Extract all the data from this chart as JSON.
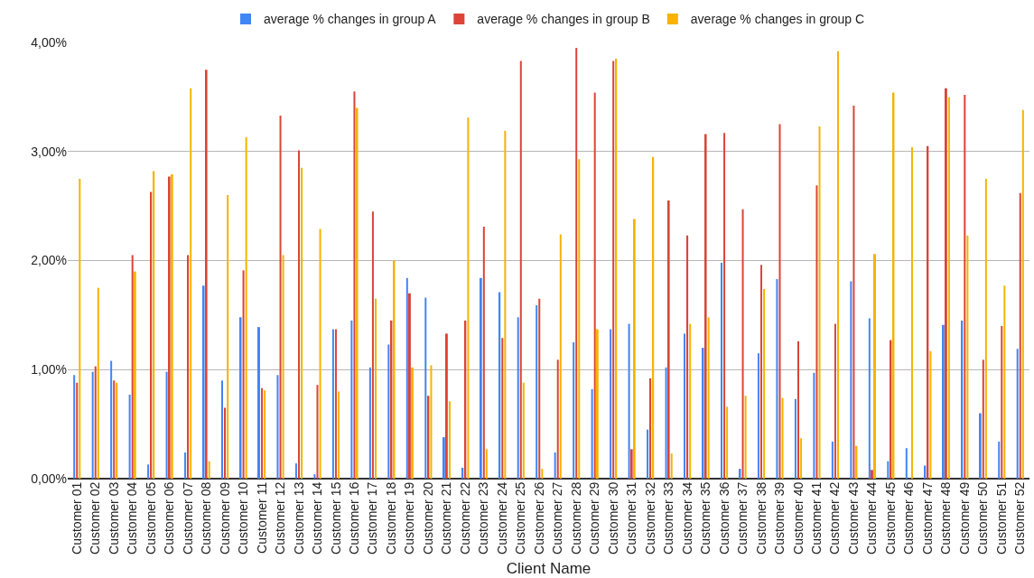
{
  "chart_data": {
    "type": "bar",
    "xlabel": "Client Name",
    "categories": [
      "Customer 01",
      "Customer 02",
      "Customer 03",
      "Customer 04",
      "Customer 05",
      "Customer 06",
      "Customer 07",
      "Customer 08",
      "Customer 09",
      "Customer 10",
      "Customer 11",
      "Customer 12",
      "Customer 13",
      "Customer 14",
      "Customer 15",
      "Customer 16",
      "Customer 17",
      "Customer 18",
      "Customer 19",
      "Customer 20",
      "Customer 21",
      "Customer 22",
      "Customer 23",
      "Customer 24",
      "Customer 25",
      "Customer 26",
      "Customer 27",
      "Customer 28",
      "Customer 29",
      "Customer 30",
      "Customer 31",
      "Customer 32",
      "Customer 33",
      "Customer 34",
      "Customer 35",
      "Customer 36",
      "Customer 37",
      "Customer 38",
      "Customer 39",
      "Customer 40",
      "Customer 41",
      "Customer 42",
      "Customer 43",
      "Customer 44",
      "Customer 45",
      "Customer 46",
      "Customer 47",
      "Customer 48",
      "Customer 49",
      "Customer 50",
      "Customer 51",
      "Customer 52"
    ],
    "series": [
      {
        "name": "average % changes in group A",
        "color": "#4285f4",
        "values": [
          0.95,
          0.98,
          1.08,
          0.77,
          0.13,
          0.98,
          0.24,
          1.77,
          0.9,
          1.48,
          1.39,
          0.95,
          0.14,
          0.04,
          1.37,
          1.45,
          1.02,
          1.23,
          1.84,
          1.66,
          0.38,
          0.1,
          1.84,
          1.71,
          1.48,
          1.59,
          0.24,
          1.25,
          0.82,
          1.37,
          1.42,
          0.45,
          1.02,
          1.33,
          1.2,
          1.98,
          0.09,
          1.15,
          1.83,
          0.73,
          0.97,
          0.34,
          1.81,
          1.47,
          0.16,
          0.28,
          0.12,
          1.41,
          1.45,
          0.6,
          0.34,
          1.19
        ]
      },
      {
        "name": "average % changes in group B",
        "color": "#db4437",
        "values": [
          0.88,
          1.03,
          0.9,
          2.05,
          2.63,
          2.77,
          2.05,
          3.75,
          0.65,
          1.91,
          0.83,
          3.33,
          3.01,
          0.86,
          1.37,
          3.55,
          2.45,
          1.45,
          1.7,
          0.76,
          1.33,
          1.45,
          2.31,
          1.29,
          3.83,
          1.65,
          1.09,
          3.95,
          3.54,
          3.83,
          0.27,
          0.92,
          2.55,
          2.23,
          3.16,
          3.17,
          2.47,
          1.96,
          3.25,
          1.26,
          2.69,
          1.42,
          3.42,
          0.08,
          1.27,
          0,
          3.05,
          3.58,
          3.52,
          1.09,
          1.4,
          2.62
        ]
      },
      {
        "name": "average % changes in group C",
        "color": "#f4b400",
        "values": [
          2.75,
          1.75,
          0.88,
          1.9,
          2.82,
          2.79,
          3.58,
          0.16,
          2.6,
          3.13,
          0.81,
          2.05,
          2.85,
          2.29,
          0.8,
          3.4,
          1.65,
          2.0,
          1.02,
          1.04,
          0.71,
          3.31,
          0.27,
          3.19,
          0.88,
          0.09,
          2.24,
          2.93,
          1.37,
          3.85,
          2.38,
          2.95,
          0.23,
          1.42,
          1.48,
          0.66,
          0.76,
          1.74,
          0.74,
          0.37,
          3.23,
          3.92,
          0.3,
          2.06,
          3.54,
          3.04,
          1.17,
          3.5,
          2.23,
          2.75,
          1.77,
          3.38
        ]
      }
    ],
    "ylim": [
      0,
      4
    ],
    "yticks": [
      {
        "value": 0,
        "label": "0,00%"
      },
      {
        "value": 1,
        "label": "1,00%"
      },
      {
        "value": 2,
        "label": "2,00%"
      },
      {
        "value": 3,
        "label": "3,00%"
      },
      {
        "value": 4,
        "label": "4,00%"
      }
    ],
    "grid": "y",
    "legend": "top"
  }
}
